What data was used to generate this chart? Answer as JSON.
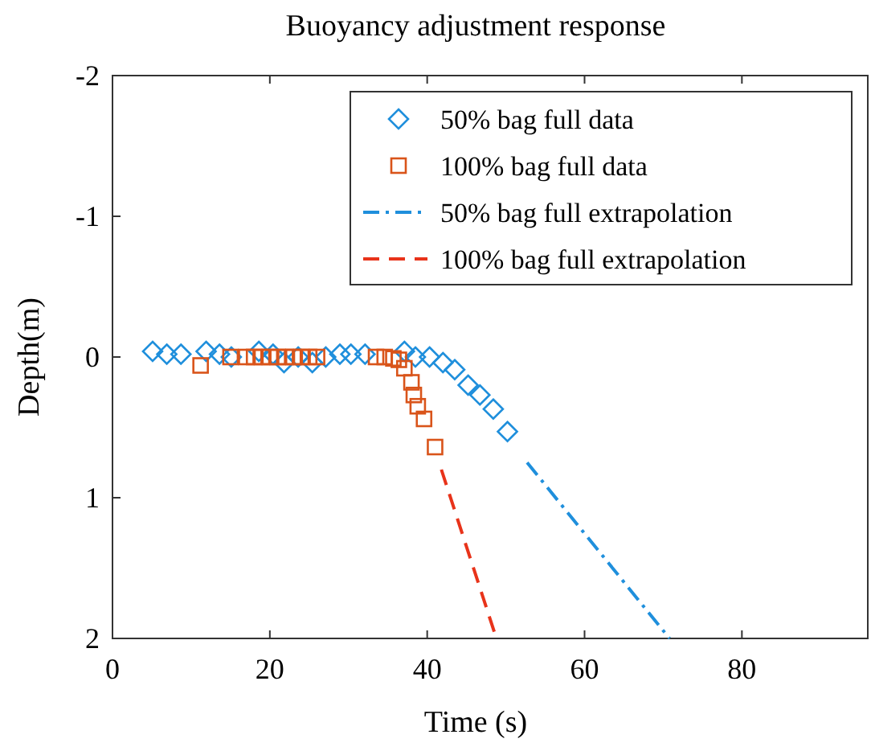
{
  "chart_data": {
    "type": "scatter",
    "title": "Buoyancy adjustment response",
    "xlabel": "Time (s)",
    "ylabel": "Depth(m)",
    "xlim": [
      0,
      96
    ],
    "xticks": [
      0,
      20,
      40,
      60,
      80
    ],
    "ylim": [
      2,
      -2
    ],
    "yticks": [
      -2,
      -1,
      0,
      1,
      2
    ],
    "grid": false,
    "legend": "top right",
    "series": [
      {
        "name": "50% bag full data",
        "marker": "diamond",
        "color": "#1f8fdc",
        "x": [
          5.1,
          6.9,
          8.7,
          11.9,
          13.6,
          15.1,
          18.6,
          20.4,
          21.8,
          23.6,
          25.4,
          27.1,
          28.9,
          30.3,
          32.1,
          37.1,
          38.5,
          40.3,
          42,
          43.5,
          45.2,
          46.7,
          48.4,
          50.2
        ],
        "values": [
          -0.04,
          -0.02,
          -0.02,
          -0.04,
          -0.02,
          0,
          -0.04,
          -0.02,
          0.04,
          0,
          0.04,
          0,
          -0.02,
          -0.02,
          -0.02,
          -0.04,
          0,
          0,
          0.04,
          0.09,
          0.2,
          0.27,
          0.37,
          0.53
        ]
      },
      {
        "name": "100% bag full data",
        "marker": "square",
        "color": "#d9541a",
        "x": [
          11.2,
          15,
          17,
          18,
          19,
          20,
          21,
          22,
          23,
          24,
          25,
          26,
          33.5,
          34.6,
          35.7,
          36.4,
          37.1,
          38,
          38.3,
          38.8,
          39.6,
          41
        ],
        "values": [
          0.06,
          0,
          0,
          0,
          0,
          0,
          0,
          0,
          0,
          0,
          0,
          0,
          0,
          0,
          0.01,
          0.02,
          0.08,
          0.18,
          0.27,
          0.35,
          0.44,
          0.64
        ]
      },
      {
        "name": "50% bag full extrapolation",
        "type": "line",
        "line_style": "dashdot",
        "color": "#1f8fdc",
        "x": [
          52.7,
          70.8
        ],
        "values": [
          0.75,
          2
        ]
      },
      {
        "name": "100% bag full extrapolation",
        "type": "line",
        "line_style": "dashed",
        "color": "#e8331a",
        "x": [
          41.8,
          48.8
        ],
        "values": [
          0.8,
          2
        ]
      }
    ]
  }
}
